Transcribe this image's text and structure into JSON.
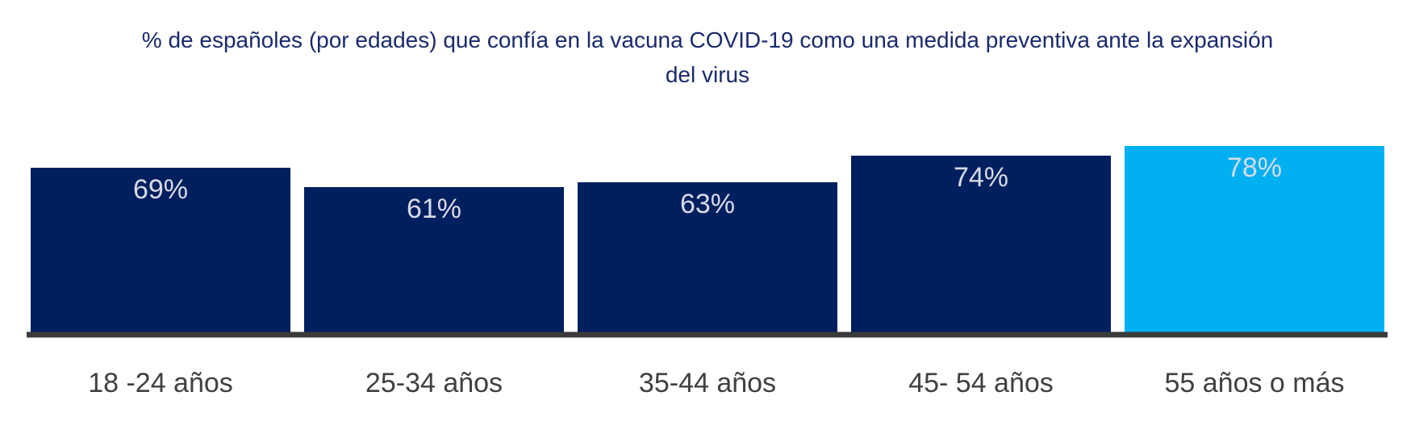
{
  "chart_data": {
    "type": "bar",
    "title_lines": [
      "% de españoles (por edades) que confía en la vacuna COVID-19 como una medida preventiva ante la expansión",
      "del virus"
    ],
    "categories": [
      "18 -24 años",
      "25-34 años",
      "35-44 años",
      "45- 54 años",
      "55 años o más"
    ],
    "values": [
      69,
      61,
      63,
      74,
      78
    ],
    "value_labels": [
      "69%",
      "61%",
      "63%",
      "74%",
      "78%"
    ],
    "bar_colors": [
      "#001f5f",
      "#001f5f",
      "#001f5f",
      "#001f5f",
      "#00b0f0"
    ],
    "axis_color": "#3a3a3a",
    "grid": false,
    "legend": false
  }
}
